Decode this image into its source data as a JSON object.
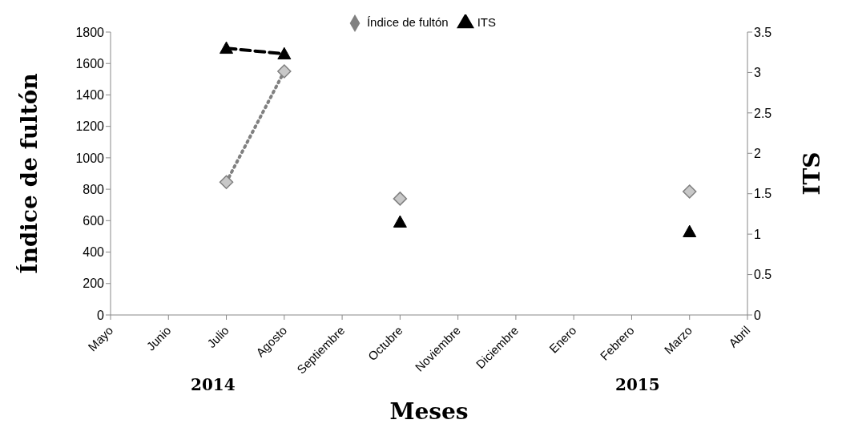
{
  "chart_data": {
    "type": "line",
    "categories": [
      "Mayo",
      "Junio",
      "Julio",
      "Agosto",
      "Septiembre",
      "Octubre",
      "Noviembre",
      "Diciembre",
      "Enero",
      "Febrero",
      "Marzo",
      "Abril"
    ],
    "series": [
      {
        "name": "Índice de fultón",
        "color": "#808080",
        "marker": "diamond",
        "line_style": "dotted",
        "values": [
          null,
          null,
          845,
          1550,
          null,
          740,
          null,
          null,
          null,
          null,
          785,
          null
        ]
      },
      {
        "name": "ITS",
        "color": "#000000",
        "marker": "triangle",
        "line_style": "dashed",
        "axis": "y2",
        "values": [
          null,
          null,
          3.3,
          3.23,
          null,
          1.15,
          null,
          null,
          null,
          null,
          1.03,
          null
        ]
      }
    ],
    "xlabel": "Meses",
    "ylabel": "Índice de fultón",
    "y2label": "ITS",
    "ylim": [
      0,
      1800
    ],
    "yticks": [
      0,
      200,
      400,
      600,
      800,
      1000,
      1200,
      1400,
      1600,
      1800
    ],
    "y2lim": [
      0,
      3.5
    ],
    "y2ticks": [
      0,
      0.5,
      1,
      1.5,
      2,
      2.5,
      3,
      3.5
    ],
    "annotations": [
      "2014",
      "2015"
    ],
    "legend": "top",
    "grid": false
  }
}
